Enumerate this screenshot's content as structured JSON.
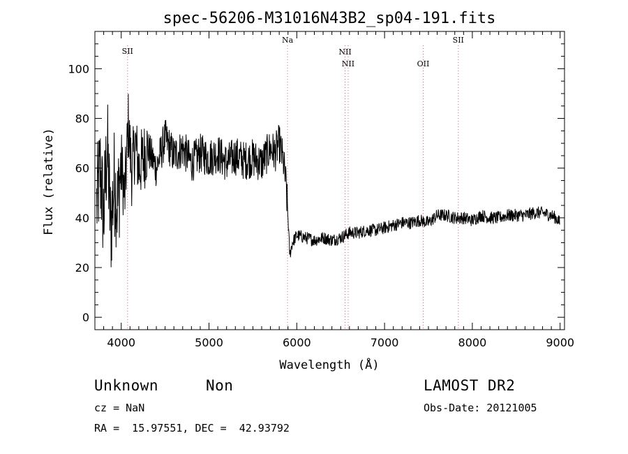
{
  "chart_data": {
    "type": "line",
    "title": "spec-56206-M31016N43B2_sp04-191.fits",
    "xlabel": "Wavelength (Å)",
    "ylabel": "Flux (relative)",
    "xlim": [
      3700,
      9050
    ],
    "ylim": [
      -5,
      115
    ],
    "xticks": [
      "4000",
      "5000",
      "6000",
      "7000",
      "8000",
      "9000"
    ],
    "yticks": [
      "0",
      "20",
      "40",
      "60",
      "80",
      "100"
    ],
    "grid": false,
    "series": [
      {
        "x": [
          3720,
          3760,
          3800,
          3840,
          3880,
          3920,
          3960,
          4000,
          4040,
          4080,
          4120,
          4160,
          4200,
          4300,
          4400,
          4500,
          4600,
          4700,
          4800,
          4900,
          5000,
          5100,
          5200,
          5300,
          5400,
          5500,
          5600,
          5700,
          5750,
          5800,
          5850,
          5880,
          5900,
          5920,
          5950,
          6000,
          6100,
          6200,
          6300,
          6400,
          6500,
          6600,
          6700,
          6800,
          6900,
          7000,
          7100,
          7200,
          7300,
          7400,
          7500,
          7600,
          7700,
          7800,
          7900,
          8000,
          8100,
          8200,
          8300,
          8400,
          8500,
          8600,
          8700,
          8800,
          8900,
          8950,
          9000
        ],
        "y": [
          45,
          60,
          40,
          70,
          35,
          55,
          45,
          62,
          48,
          78,
          58,
          70,
          60,
          68,
          60,
          72,
          65,
          68,
          62,
          66,
          64,
          66,
          62,
          65,
          63,
          64,
          62,
          68,
          66,
          70,
          62,
          52,
          40,
          25,
          30,
          33,
          32,
          31,
          32,
          31,
          32,
          34,
          34,
          35,
          35,
          36,
          37,
          38,
          38,
          39,
          38,
          41,
          41,
          40,
          40,
          39,
          41,
          40,
          40,
          41,
          41,
          41,
          42,
          42,
          41,
          40,
          38
        ]
      }
    ],
    "lines": [
      {
        "label": "SII",
        "x": 4072
      },
      {
        "label": "Na",
        "x": 5895
      },
      {
        "label": "NII",
        "x": 6550
      },
      {
        "label": "NII",
        "x": 6585
      },
      {
        "label": "OII",
        "x": 7440
      },
      {
        "label": "SII",
        "x": 7840
      }
    ]
  },
  "footer": {
    "class_label": "Unknown",
    "subclass_label": "Non",
    "survey_label": "LAMOST DR2",
    "cz_text": "cz = NaN",
    "obs_date_text": "Obs-Date: 20121005",
    "radec_text": "RA =  15.97551, DEC =  42.93792"
  }
}
